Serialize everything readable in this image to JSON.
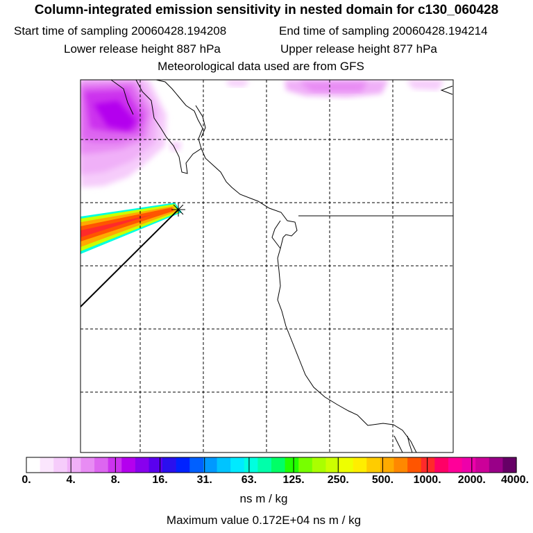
{
  "title": "Column-integrated emission sensitivity in nested domain for c130_060428",
  "header": {
    "start_time": "Start time of sampling 20060428.194208",
    "end_time": "End time of sampling 20060428.194214",
    "lower_height": "Lower release height  887 hPa",
    "upper_height": "Upper release height  877 hPa",
    "met_data": "Meteorological data used are from GFS"
  },
  "colorbar": {
    "tick_labels": [
      "0.",
      "4.",
      "8.",
      "16.",
      "31.",
      "63.",
      "125.",
      "250.",
      "500.",
      "1000.",
      "2000.",
      "4000."
    ],
    "units": "ns m / kg",
    "colors": [
      "#ffffff",
      "#fbe6fd",
      "#f6ccfb",
      "#f0b0f8",
      "#e88cf4",
      "#dd66f0",
      "#cc33ee",
      "#b400ee",
      "#8800ee",
      "#5a00ee",
      "#2a10ee",
      "#0022ff",
      "#0060ff",
      "#0099ff",
      "#00c4ff",
      "#00eaff",
      "#00ffe0",
      "#00ffaa",
      "#00ff66",
      "#22ff00",
      "#77ff00",
      "#aaff00",
      "#ccff00",
      "#eeff00",
      "#ffee00",
      "#ffcc00",
      "#ffaa00",
      "#ff8800",
      "#ff5500",
      "#ff2a2a",
      "#ff0066",
      "#ff0099",
      "#ee00aa",
      "#cc0099",
      "#990088",
      "#660066"
    ]
  },
  "max_value": "Maximum value  0.172E+04 ns m / kg"
}
